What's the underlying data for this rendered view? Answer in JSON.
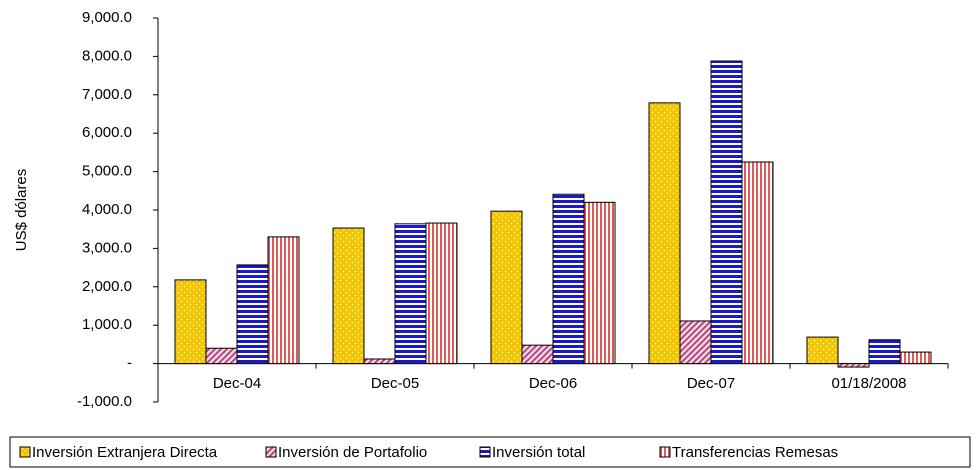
{
  "chart_data": {
    "type": "bar",
    "y_label": "US$ dólares",
    "categories": [
      "Dec-04",
      "Dec-05",
      "Dec-06",
      "Dec-07",
      "01/18/2008"
    ],
    "series": [
      {
        "name": "Inversión Extranjera Directa",
        "color": "#f2c500",
        "pattern": "dots",
        "values": [
          2180,
          3530,
          3970,
          6790,
          690
        ]
      },
      {
        "name": "Inversión de Portafolio",
        "color": "#b8467e",
        "pattern": "diagonal",
        "values": [
          400,
          120,
          480,
          1110,
          -90
        ]
      },
      {
        "name": "Inversión total",
        "color": "#1a1acc",
        "pattern": "horizontal",
        "values": [
          2570,
          3640,
          4410,
          7880,
          620
        ]
      },
      {
        "name": "Transferencias Remesas",
        "color": "#e05a5a",
        "pattern": "vertical",
        "values": [
          3300,
          3660,
          4200,
          5250,
          300
        ]
      }
    ],
    "ylim": [
      -1000,
      9000
    ],
    "yticks": [
      {
        "value": -1000,
        "label": "-1,000.0"
      },
      {
        "value": 0,
        "label": "-"
      },
      {
        "value": 1000,
        "label": "1,000.0"
      },
      {
        "value": 2000,
        "label": "2,000.0"
      },
      {
        "value": 3000,
        "label": "3,000.0"
      },
      {
        "value": 4000,
        "label": "4,000.0"
      },
      {
        "value": 5000,
        "label": "5,000.0"
      },
      {
        "value": 6000,
        "label": "6,000.0"
      },
      {
        "value": 7000,
        "label": "7,000.0"
      },
      {
        "value": 8000,
        "label": "8,000.0"
      },
      {
        "value": 9000,
        "label": "9,000.0"
      }
    ],
    "legend": "bottom"
  }
}
